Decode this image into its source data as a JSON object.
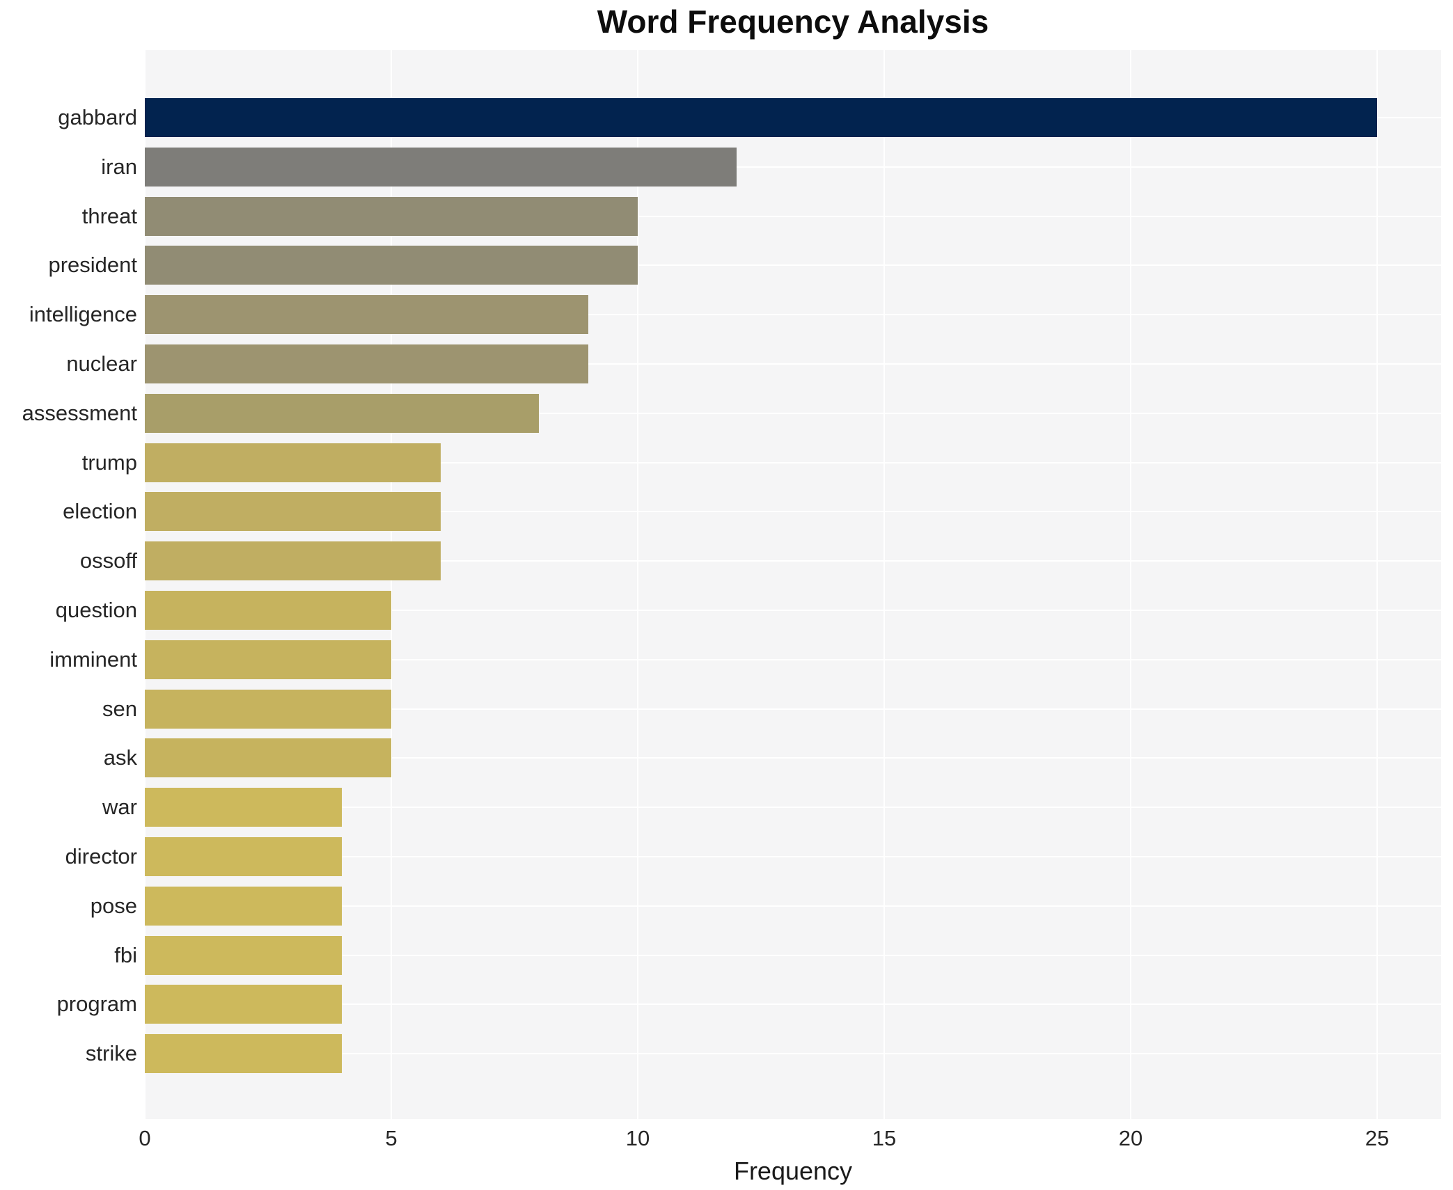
{
  "page": {
    "background_color": "#ffffff",
    "plot_background_color": "#f5f5f6",
    "grid_color": "#ffffff"
  },
  "chart_data": {
    "type": "bar",
    "orientation": "horizontal",
    "title": "Word Frequency Analysis",
    "xlabel": "Frequency",
    "ylabel": "",
    "categories": [
      "gabbard",
      "iran",
      "threat",
      "president",
      "intelligence",
      "nuclear",
      "assessment",
      "trump",
      "election",
      "ossoff",
      "question",
      "imminent",
      "sen",
      "ask",
      "war",
      "director",
      "pose",
      "fbi",
      "program",
      "strike"
    ],
    "values": [
      25,
      12,
      10,
      10,
      9,
      9,
      8,
      6,
      6,
      6,
      5,
      5,
      5,
      5,
      4,
      4,
      4,
      4,
      4,
      4
    ],
    "bar_colors": [
      "#02234f",
      "#7e7d79",
      "#918c74",
      "#918c74",
      "#9d9470",
      "#9d9470",
      "#a89e69",
      "#c0ae62",
      "#c0ae62",
      "#c0ae62",
      "#c6b35e",
      "#c6b35e",
      "#c6b35e",
      "#c6b35e",
      "#cdb95c",
      "#cdb95c",
      "#cdb95c",
      "#cdb95c",
      "#cdb95c",
      "#cdb95c"
    ],
    "xticks": [
      0,
      5,
      10,
      15,
      20,
      25
    ],
    "xlim": [
      0,
      26.3
    ],
    "grid": true,
    "legend": false
  }
}
